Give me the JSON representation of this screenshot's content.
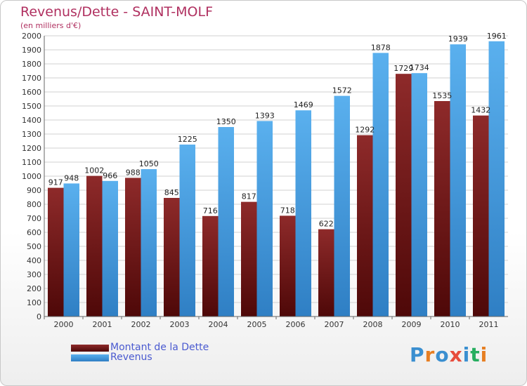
{
  "header": {
    "title": "Revenus/Dette - SAINT-MOLF",
    "subtitle": "(en milliers d'€)"
  },
  "legend": [
    {
      "label": "Montant de la Dette",
      "color": "#7a1f1f"
    },
    {
      "label": "Revenus",
      "color": "#4aa3e8"
    }
  ],
  "logo": {
    "text": "Proxiti",
    "letters": [
      {
        "ch": "P",
        "color": "#3a8fd0"
      },
      {
        "ch": "r",
        "color": "#e67e22"
      },
      {
        "ch": "o",
        "color": "#3a8fd0"
      },
      {
        "ch": "x",
        "color": "#e74c3c"
      },
      {
        "ch": "i",
        "color": "#3a8fd0"
      },
      {
        "ch": "t",
        "color": "#27ae60"
      },
      {
        "ch": "i",
        "color": "#e67e22"
      }
    ]
  },
  "chart_data": {
    "type": "bar",
    "title": "Revenus/Dette - SAINT-MOLF",
    "subtitle": "(en milliers d'€)",
    "categories": [
      "2000",
      "2001",
      "2002",
      "2003",
      "2004",
      "2005",
      "2006",
      "2007",
      "2008",
      "2009",
      "2010",
      "2011"
    ],
    "series": [
      {
        "name": "Montant de la Dette",
        "color": "#7a1f1f",
        "values": [
          917,
          1002,
          988,
          845,
          716,
          817,
          718,
          622,
          1292,
          1729,
          1535,
          1432
        ]
      },
      {
        "name": "Revenus",
        "color": "#4aa3e8",
        "values": [
          948,
          966,
          1050,
          1225,
          1350,
          1393,
          1469,
          1572,
          1878,
          1734,
          1939,
          1961
        ]
      }
    ],
    "ylim": [
      0,
      2000
    ],
    "ytick_step": 100,
    "grid": true,
    "legend_position": "bottom-left"
  }
}
